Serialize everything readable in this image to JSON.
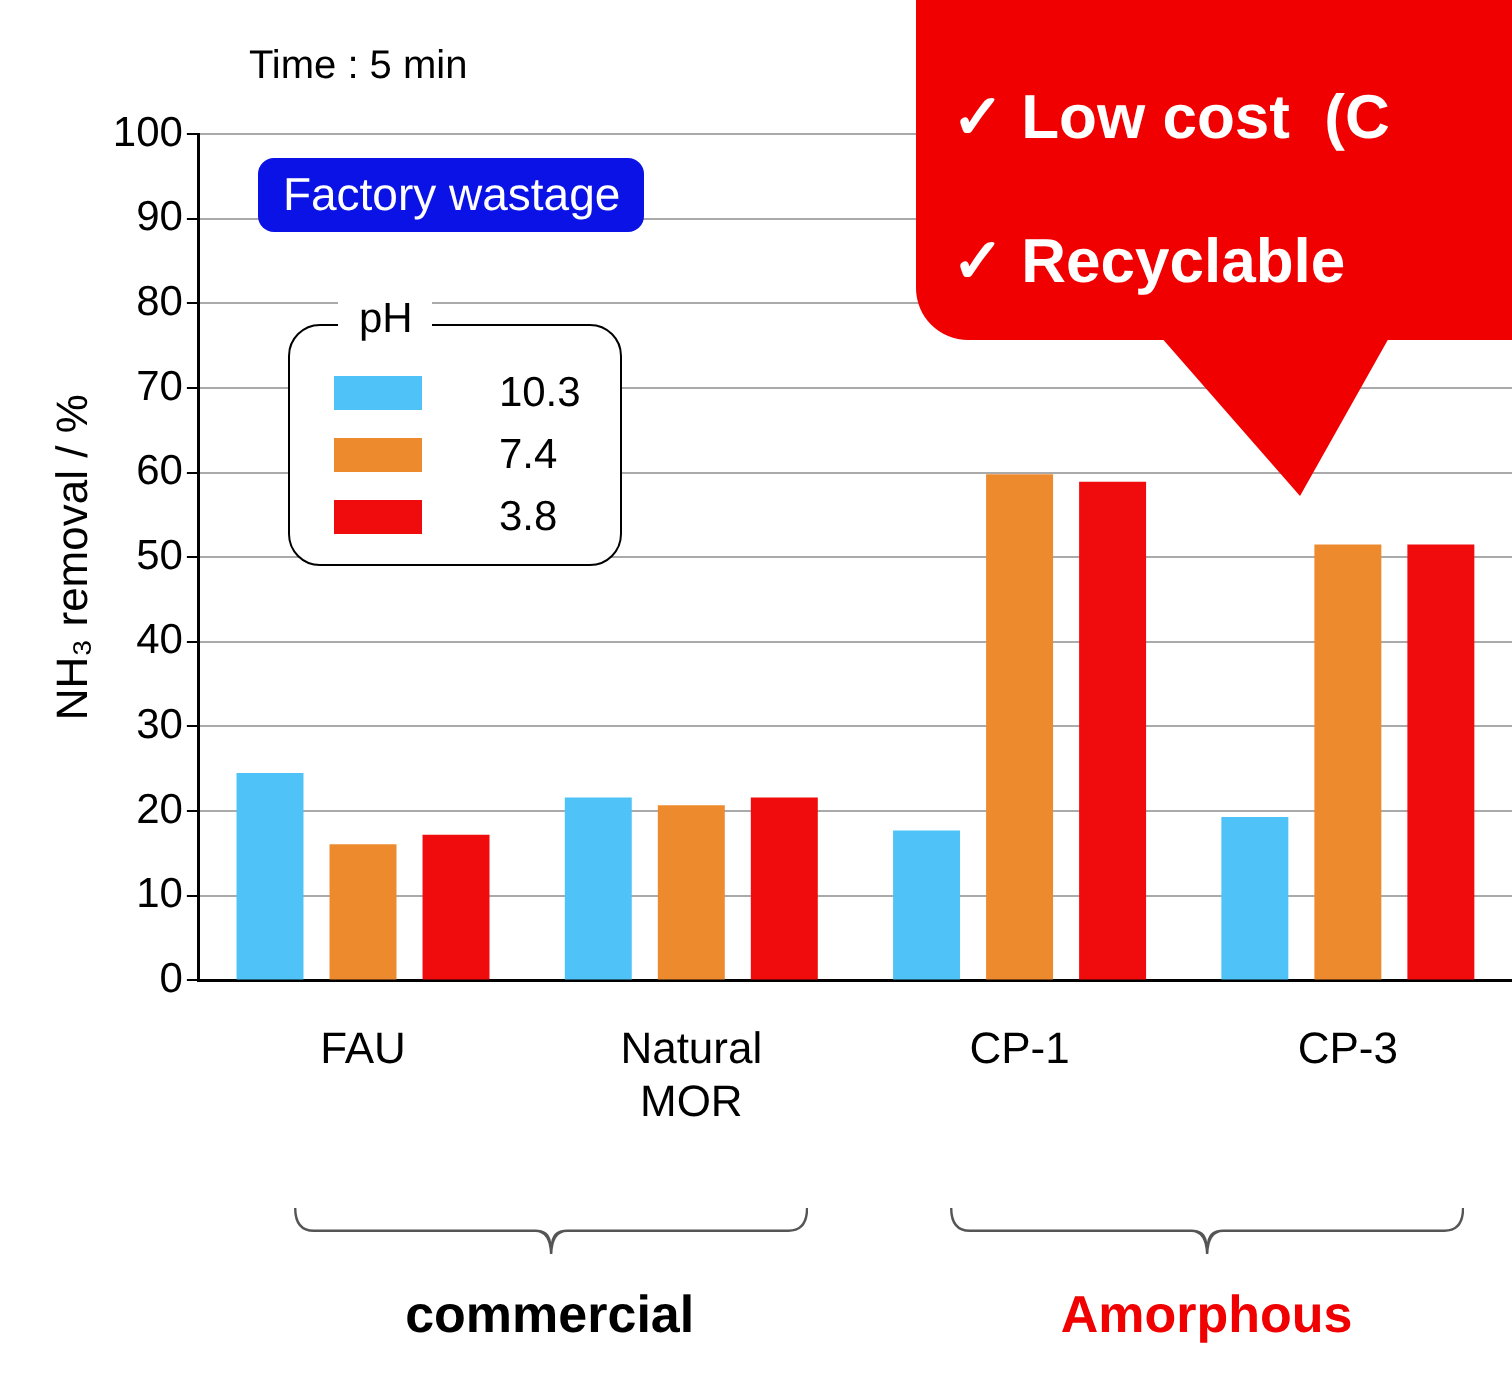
{
  "chart_data": {
    "type": "bar",
    "title": "Time : 5 min",
    "ylabel": "NH₃ removal / %",
    "legend_title": "pH",
    "legend": "top left",
    "grid": "y",
    "categories": [
      "FAU",
      "Natural MOR",
      "CP-1",
      "CP-3"
    ],
    "series": [
      {
        "name": "10.3",
        "color": "#4fc3f7",
        "values": [
          24.5,
          21.6,
          17.7,
          19.3
        ]
      },
      {
        "name": "7.4",
        "color": "#ee8a2e",
        "values": [
          16.1,
          20.7,
          59.8,
          51.5
        ]
      },
      {
        "name": "3.8",
        "color": "#f00c0c",
        "values": [
          17.2,
          21.6,
          58.9,
          51.5
        ]
      }
    ],
    "ylim": [
      0,
      100
    ],
    "yticks": [
      0,
      10,
      20,
      30,
      40,
      50,
      60,
      70,
      80,
      90,
      100
    ],
    "annotations": [
      "Factory wastage",
      "✓ Low cost  (C",
      "✓ Recyclable",
      "commercial",
      "Amorphous"
    ]
  }
}
